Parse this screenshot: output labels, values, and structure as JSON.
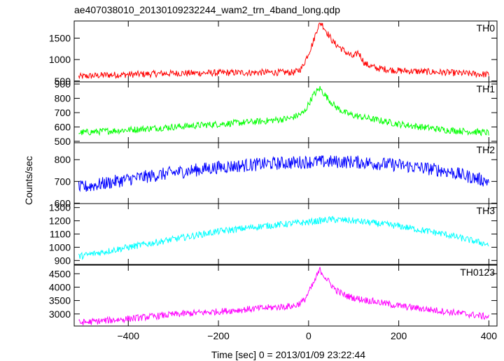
{
  "chart_data": {
    "type": "line",
    "title": "ae407038010_20130109232244_wam2_trn_4band_long.qdp",
    "xlabel": "Time [sec] 0 = 2013/01/09 23:22:44",
    "ylabel": "Counts/sec",
    "xlim": [
      -520,
      418
    ],
    "x_ticks": [
      -400,
      -200,
      0,
      200,
      400
    ],
    "x_tick_labels": [
      "−400",
      "−200",
      "0",
      "200",
      "400"
    ],
    "grid": false,
    "series": [
      {
        "name": "TH0",
        "color": "#ff0000",
        "ylim": [
          480,
          1900
        ],
        "yticks": [
          500,
          1000,
          1500
        ],
        "x": [
          -510,
          -450,
          -400,
          -300,
          -200,
          -100,
          -30,
          -15,
          0,
          10,
          20,
          28,
          40,
          55,
          70,
          85,
          100,
          110,
          125,
          150,
          200,
          300,
          400
        ],
        "values": [
          600,
          640,
          650,
          680,
          690,
          700,
          700,
          800,
          1150,
          1400,
          1750,
          1860,
          1650,
          1400,
          1280,
          1150,
          1050,
          1180,
          900,
          800,
          740,
          700,
          650
        ]
      },
      {
        "name": "TH1",
        "color": "#00ff00",
        "ylim": [
          490,
          915
        ],
        "yticks": [
          500,
          600,
          700,
          800,
          900
        ],
        "x": [
          -510,
          -400,
          -300,
          -200,
          -100,
          -40,
          -10,
          10,
          25,
          40,
          60,
          80,
          100,
          150,
          200,
          300,
          400
        ],
        "values": [
          560,
          580,
          600,
          620,
          640,
          660,
          700,
          820,
          870,
          810,
          740,
          700,
          680,
          650,
          620,
          580,
          560
        ]
      },
      {
        "name": "TH2",
        "color": "#0000ff",
        "ylim": [
          598,
          878
        ],
        "yticks": [
          600,
          700,
          800
        ],
        "x": [
          -510,
          -400,
          -300,
          -200,
          -100,
          0,
          100,
          200,
          300,
          400
        ],
        "values": [
          670,
          710,
          740,
          765,
          780,
          790,
          790,
          775,
          750,
          700
        ]
      },
      {
        "name": "TH3",
        "color": "#00ffff",
        "ylim": [
          870,
          1330
        ],
        "yticks": [
          900,
          1000,
          1100,
          1200,
          1300
        ],
        "x": [
          -510,
          -400,
          -300,
          -200,
          -100,
          0,
          50,
          100,
          200,
          300,
          400
        ],
        "values": [
          930,
          1000,
          1060,
          1120,
          1160,
          1190,
          1210,
          1200,
          1160,
          1100,
          1020
        ]
      },
      {
        "name": "TH0123",
        "color": "#ff00ff",
        "ylim": [
          2550,
          4820
        ],
        "yticks": [
          3000,
          3500,
          4000,
          4500
        ],
        "x": [
          -510,
          -400,
          -300,
          -200,
          -100,
          -30,
          -10,
          10,
          25,
          40,
          60,
          80,
          100,
          150,
          200,
          300,
          400
        ],
        "values": [
          2670,
          2820,
          2980,
          3090,
          3220,
          3300,
          3500,
          4100,
          4650,
          4300,
          3900,
          3700,
          3600,
          3450,
          3300,
          3100,
          2890
        ]
      }
    ]
  }
}
